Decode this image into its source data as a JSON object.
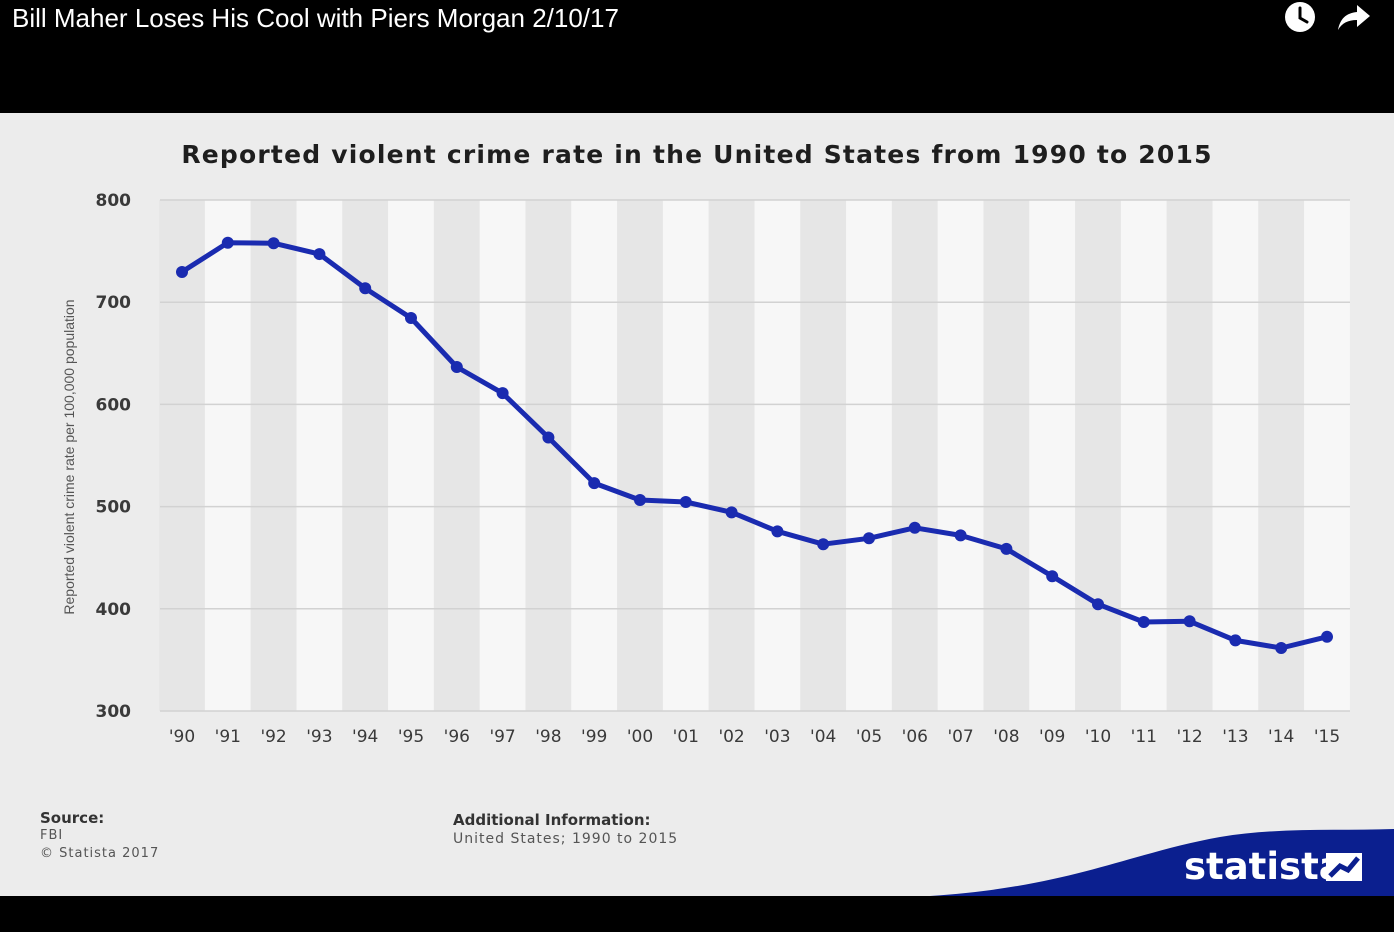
{
  "video": {
    "title": "Bill Maher Loses His Cool with Piers Morgan 2/10/17",
    "icons": [
      "clock-icon",
      "share-arrow-icon"
    ]
  },
  "chart_data": {
    "type": "line",
    "title": "Reported violent crime rate in the United States from 1990 to 2015",
    "xlabel": "",
    "ylabel": "Reported violent crime rate per 100,000 population",
    "categories": [
      "'90",
      "'91",
      "'92",
      "'93",
      "'94",
      "'95",
      "'96",
      "'97",
      "'98",
      "'99",
      "'00",
      "'01",
      "'02",
      "'03",
      "'04",
      "'05",
      "'06",
      "'07",
      "'08",
      "'09",
      "'10",
      "'11",
      "'12",
      "'13",
      "'14",
      "'15"
    ],
    "series": [
      {
        "values": [
          729.6,
          758.2,
          757.7,
          747.1,
          713.6,
          684.5,
          636.6,
          611.0,
          567.6,
          523.0,
          506.5,
          504.5,
          494.4,
          475.8,
          463.2,
          469.0,
          479.3,
          471.8,
          458.6,
          431.9,
          404.5,
          387.1,
          387.8,
          369.1,
          361.6,
          372.6
        ],
        "color": "#1a2bb0"
      }
    ],
    "ylim": [
      300,
      800
    ],
    "yticks": [
      300,
      400,
      500,
      600,
      700,
      800
    ],
    "grid": true,
    "legend": "none",
    "background_stripes": true
  },
  "footer": {
    "source_heading": "Source:",
    "source_lines": [
      "FBI",
      "© Statista 2017"
    ],
    "additional_heading": "Additional Information:",
    "additional_line": "United States; 1990 to 2015",
    "brand": "statista",
    "brand_color": "#0b1f8f"
  }
}
